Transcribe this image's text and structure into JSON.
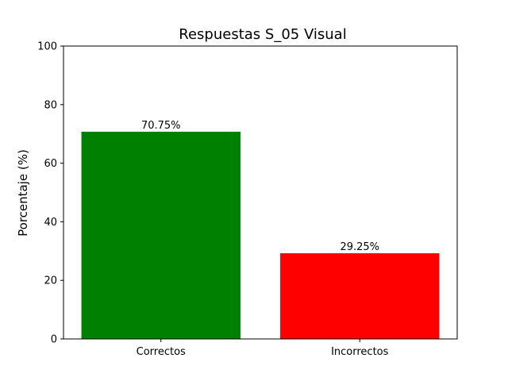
{
  "chart_data": {
    "type": "bar",
    "title": "Respuestas S_05 Visual",
    "xlabel": "",
    "ylabel": "Porcentaje (%)",
    "ylim": [
      0,
      100
    ],
    "yticks": [
      0,
      20,
      40,
      60,
      80,
      100
    ],
    "grid": false,
    "categories": [
      "Correctos",
      "Incorrectos"
    ],
    "values": [
      70.75,
      29.25
    ],
    "data_labels": [
      "70.75%",
      "29.25%"
    ],
    "colors": [
      "#008000",
      "#ff0000"
    ]
  }
}
